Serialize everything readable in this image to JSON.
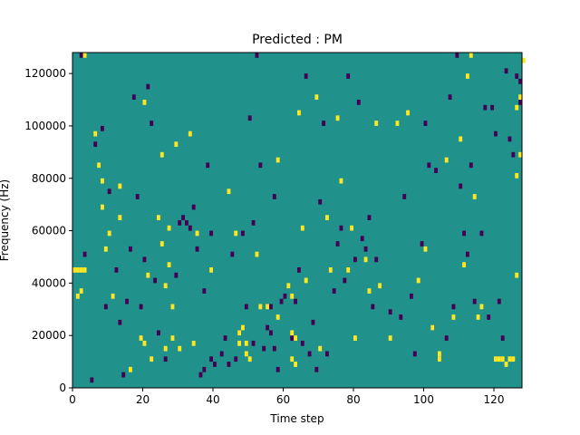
{
  "chart_data": {
    "type": "heatmap",
    "title": "Predicted : PM",
    "xlabel": "Time step",
    "ylabel": "Frequency (Hz)",
    "xlim": [
      0,
      128
    ],
    "ylim": [
      0,
      128000
    ],
    "xticks": [
      "0",
      "20",
      "40",
      "60",
      "80",
      "100",
      "120"
    ],
    "xtick_values": [
      0,
      20,
      40,
      60,
      80,
      100,
      120
    ],
    "yticks": [
      "0",
      "20000",
      "40000",
      "60000",
      "80000",
      "100000",
      "120000"
    ],
    "ytick_values": [
      0,
      20000,
      40000,
      60000,
      80000,
      100000,
      120000
    ],
    "grid": false,
    "colormap": "viridis",
    "colors": {
      "background": "#21918c",
      "high": "#fde725",
      "low": "#440154"
    },
    "bin_width_x": 1,
    "bin_height_y": 2000,
    "yellow_cells": [
      [
        0,
        44000
      ],
      [
        1,
        44000
      ],
      [
        2,
        44000
      ],
      [
        3,
        44000
      ],
      [
        1,
        34000
      ],
      [
        2,
        36000
      ],
      [
        3,
        126000
      ],
      [
        6,
        96000
      ],
      [
        7,
        84000
      ],
      [
        8,
        78000
      ],
      [
        8,
        68000
      ],
      [
        9,
        52000
      ],
      [
        10,
        58000
      ],
      [
        11,
        34000
      ],
      [
        13,
        64000
      ],
      [
        13,
        76000
      ],
      [
        16,
        6000
      ],
      [
        19,
        18000
      ],
      [
        20,
        108000
      ],
      [
        20,
        16000
      ],
      [
        21,
        42000
      ],
      [
        22,
        10000
      ],
      [
        24,
        64000
      ],
      [
        25,
        88000
      ],
      [
        25,
        54000
      ],
      [
        26,
        14000
      ],
      [
        26,
        38000
      ],
      [
        27,
        60000
      ],
      [
        27,
        46000
      ],
      [
        28,
        18000
      ],
      [
        28,
        30000
      ],
      [
        29,
        92000
      ],
      [
        30,
        14000
      ],
      [
        33,
        96000
      ],
      [
        34,
        16000
      ],
      [
        35,
        58000
      ],
      [
        39,
        44000
      ],
      [
        44,
        74000
      ],
      [
        46,
        58000
      ],
      [
        47,
        20000
      ],
      [
        47,
        16000
      ],
      [
        48,
        22000
      ],
      [
        49,
        16000
      ],
      [
        49,
        12000
      ],
      [
        50,
        10000
      ],
      [
        52,
        50000
      ],
      [
        53,
        30000
      ],
      [
        55,
        30000
      ],
      [
        58,
        86000
      ],
      [
        58,
        26000
      ],
      [
        61,
        38000
      ],
      [
        62,
        34000
      ],
      [
        62,
        20000
      ],
      [
        63,
        18000
      ],
      [
        62,
        10000
      ],
      [
        63,
        8000
      ],
      [
        64,
        104000
      ],
      [
        65,
        60000
      ],
      [
        66,
        40000
      ],
      [
        69,
        110000
      ],
      [
        70,
        14000
      ],
      [
        72,
        64000
      ],
      [
        73,
        44000
      ],
      [
        75,
        102000
      ],
      [
        76,
        78000
      ],
      [
        78,
        44000
      ],
      [
        79,
        60000
      ],
      [
        80,
        18000
      ],
      [
        83,
        48000
      ],
      [
        84,
        36000
      ],
      [
        86,
        100000
      ],
      [
        87,
        38000
      ],
      [
        90,
        18000
      ],
      [
        92,
        100000
      ],
      [
        95,
        104000
      ],
      [
        98,
        40000
      ],
      [
        100,
        52000
      ],
      [
        102,
        22000
      ],
      [
        104,
        12000
      ],
      [
        104,
        10000
      ],
      [
        106,
        86000
      ],
      [
        108,
        26000
      ],
      [
        110,
        94000
      ],
      [
        111,
        46000
      ],
      [
        112,
        118000
      ],
      [
        113,
        126000
      ],
      [
        114,
        72000
      ],
      [
        115,
        26000
      ],
      [
        116,
        30000
      ],
      [
        120,
        10000
      ],
      [
        121,
        10000
      ],
      [
        122,
        10000
      ],
      [
        123,
        8000
      ],
      [
        124,
        10000
      ],
      [
        125,
        10000
      ],
      [
        126,
        80000
      ],
      [
        126,
        106000
      ],
      [
        126,
        42000
      ],
      [
        127,
        88000
      ],
      [
        127,
        110000
      ],
      [
        128,
        124000
      ]
    ],
    "purple_cells": [
      [
        2,
        126000
      ],
      [
        3,
        50000
      ],
      [
        5,
        2000
      ],
      [
        6,
        92000
      ],
      [
        8,
        98000
      ],
      [
        9,
        30000
      ],
      [
        10,
        74000
      ],
      [
        12,
        44000
      ],
      [
        13,
        24000
      ],
      [
        14,
        4000
      ],
      [
        15,
        32000
      ],
      [
        16,
        52000
      ],
      [
        17,
        110000
      ],
      [
        18,
        72000
      ],
      [
        19,
        30000
      ],
      [
        20,
        48000
      ],
      [
        21,
        114000
      ],
      [
        22,
        100000
      ],
      [
        23,
        40000
      ],
      [
        24,
        20000
      ],
      [
        26,
        10000
      ],
      [
        29,
        42000
      ],
      [
        30,
        62000
      ],
      [
        31,
        64000
      ],
      [
        32,
        62000
      ],
      [
        33,
        60000
      ],
      [
        34,
        68000
      ],
      [
        35,
        52000
      ],
      [
        36,
        4000
      ],
      [
        37,
        6000
      ],
      [
        37,
        36000
      ],
      [
        38,
        84000
      ],
      [
        39,
        10000
      ],
      [
        39,
        58000
      ],
      [
        40,
        8000
      ],
      [
        42,
        12000
      ],
      [
        43,
        18000
      ],
      [
        44,
        8000
      ],
      [
        45,
        50000
      ],
      [
        46,
        10000
      ],
      [
        47,
        20000
      ],
      [
        48,
        58000
      ],
      [
        49,
        30000
      ],
      [
        50,
        102000
      ],
      [
        51,
        62000
      ],
      [
        51,
        16000
      ],
      [
        52,
        126000
      ],
      [
        53,
        84000
      ],
      [
        54,
        14000
      ],
      [
        55,
        22000
      ],
      [
        56,
        20000
      ],
      [
        56,
        30000
      ],
      [
        57,
        14000
      ],
      [
        57,
        72000
      ],
      [
        58,
        6000
      ],
      [
        59,
        32000
      ],
      [
        60,
        34000
      ],
      [
        62,
        18000
      ],
      [
        63,
        32000
      ],
      [
        64,
        44000
      ],
      [
        65,
        16000
      ],
      [
        66,
        118000
      ],
      [
        67,
        12000
      ],
      [
        68,
        24000
      ],
      [
        69,
        6000
      ],
      [
        70,
        70000
      ],
      [
        71,
        100000
      ],
      [
        72,
        12000
      ],
      [
        74,
        36000
      ],
      [
        75,
        54000
      ],
      [
        76,
        60000
      ],
      [
        77,
        40000
      ],
      [
        78,
        118000
      ],
      [
        80,
        48000
      ],
      [
        81,
        108000
      ],
      [
        82,
        56000
      ],
      [
        83,
        52000
      ],
      [
        84,
        64000
      ],
      [
        85,
        30000
      ],
      [
        86,
        48000
      ],
      [
        90,
        28000
      ],
      [
        93,
        26000
      ],
      [
        94,
        72000
      ],
      [
        96,
        34000
      ],
      [
        97,
        12000
      ],
      [
        99,
        54000
      ],
      [
        100,
        100000
      ],
      [
        101,
        84000
      ],
      [
        102,
        22000
      ],
      [
        103,
        82000
      ],
      [
        104,
        10000
      ],
      [
        106,
        18000
      ],
      [
        107,
        110000
      ],
      [
        108,
        30000
      ],
      [
        109,
        126000
      ],
      [
        110,
        76000
      ],
      [
        111,
        58000
      ],
      [
        112,
        50000
      ],
      [
        113,
        84000
      ],
      [
        114,
        32000
      ],
      [
        116,
        58000
      ],
      [
        117,
        106000
      ],
      [
        118,
        26000
      ],
      [
        119,
        106000
      ],
      [
        120,
        96000
      ],
      [
        121,
        32000
      ],
      [
        122,
        18000
      ],
      [
        123,
        120000
      ],
      [
        124,
        94000
      ],
      [
        125,
        88000
      ],
      [
        126,
        118000
      ],
      [
        127,
        116000
      ],
      [
        127,
        108000
      ]
    ]
  }
}
